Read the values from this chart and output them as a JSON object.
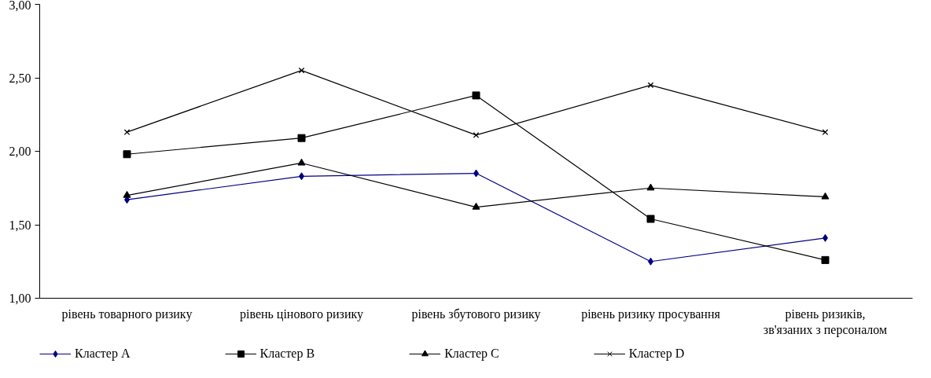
{
  "chart_data": {
    "type": "line",
    "categories": [
      "рівень товарного ризику",
      "рівень цінового ризику",
      "рівень збутового ризику",
      "рівень ризику просування",
      "рівень ризиків, зв'язаних з персоналом"
    ],
    "series": [
      {
        "name": "Кластер A",
        "color": "#000080",
        "marker": "diamond",
        "values": [
          1.67,
          1.83,
          1.85,
          1.25,
          1.41
        ]
      },
      {
        "name": "Кластер B",
        "color": "#000000",
        "marker": "square",
        "values": [
          1.98,
          2.09,
          2.38,
          1.54,
          1.26
        ]
      },
      {
        "name": "Кластер C",
        "color": "#000000",
        "marker": "triangle",
        "values": [
          1.7,
          1.92,
          1.62,
          1.75,
          1.69
        ]
      },
      {
        "name": "Кластер D",
        "color": "#000000",
        "marker": "cross",
        "values": [
          2.13,
          2.55,
          2.11,
          2.45,
          2.13
        ]
      }
    ],
    "ylim": [
      1.0,
      3.0
    ],
    "yticks": [
      {
        "value": 1.0,
        "label": "1,00"
      },
      {
        "value": 1.5,
        "label": "1,50"
      },
      {
        "value": 2.0,
        "label": "2,00"
      },
      {
        "value": 2.5,
        "label": "2,50"
      },
      {
        "value": 3.0,
        "label": "3,00"
      }
    ],
    "grid": false,
    "legend": "bottom",
    "line_style": "solid"
  }
}
